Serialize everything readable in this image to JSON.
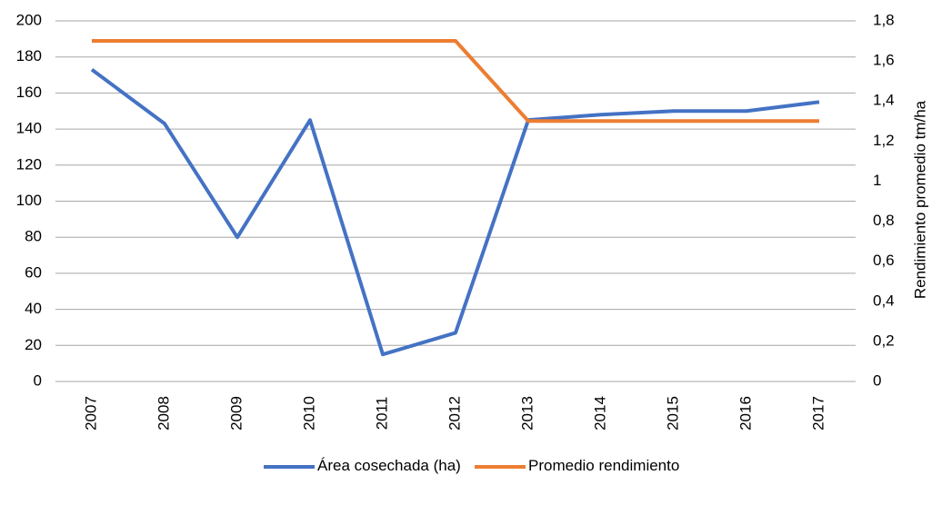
{
  "chart_data": {
    "type": "line",
    "categories": [
      "2007",
      "2008",
      "2009",
      "2010",
      "2011",
      "2012",
      "2013",
      "2014",
      "2015",
      "2016",
      "2017"
    ],
    "series": [
      {
        "name": "Área cosechada (ha)",
        "color": "#4472c4",
        "values": [
          173,
          143,
          80,
          145,
          15,
          27,
          145,
          148,
          150,
          150,
          155
        ]
      },
      {
        "name": "Promedio  rendimiento",
        "color": "#ed7d31",
        "axis": "y2",
        "values": [
          1.7,
          1.7,
          1.7,
          1.7,
          1.7,
          1.7,
          1.3,
          1.3,
          1.3,
          1.3,
          1.3
        ]
      }
    ],
    "ylim": [
      0,
      200
    ],
    "yticks": [
      0,
      20,
      40,
      60,
      80,
      100,
      120,
      140,
      160,
      180,
      200
    ],
    "y2lim": [
      0,
      1.8
    ],
    "y2ticks": [
      0,
      {
        "value": 0.2,
        "label": "0,2"
      },
      {
        "value": 0.4,
        "label": "0,4"
      },
      {
        "value": 0.6,
        "label": "0,6"
      },
      {
        "value": 0.8,
        "label": "0,8"
      },
      1,
      {
        "value": 1.2,
        "label": "1,2"
      },
      {
        "value": 1.4,
        "label": "1,4"
      },
      {
        "value": 1.6,
        "label": "1,6"
      },
      {
        "value": 1.8,
        "label": "1,8"
      }
    ],
    "y2label": "Rendimiento promedio  tm/ha",
    "grid": true,
    "legend": "bottom"
  }
}
